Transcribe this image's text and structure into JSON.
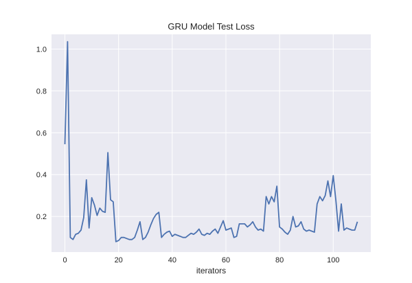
{
  "chart_data": {
    "type": "line",
    "title": "GRU Model Test Loss",
    "xlabel": "iterators",
    "ylabel": "",
    "xlim": [
      -5,
      114
    ],
    "ylim": [
      0.03,
      1.07
    ],
    "xticks": [
      0,
      20,
      40,
      60,
      80,
      100
    ],
    "yticks": [
      0.2,
      0.4,
      0.6,
      0.8,
      1.0
    ],
    "xtick_labels": [
      "0",
      "20",
      "40",
      "60",
      "80",
      "100"
    ],
    "ytick_labels": [
      "0.2",
      "0.4",
      "0.6",
      "0.8",
      "1.0"
    ],
    "grid": true,
    "background": "#eaeaf2",
    "grid_color": "#ffffff",
    "line_color": "#4c72b0",
    "series": [
      {
        "x": [
          0,
          1,
          2,
          3,
          4,
          5,
          6,
          7,
          8,
          9,
          10,
          11,
          12,
          13,
          14,
          15,
          16,
          17,
          18,
          19,
          20,
          21,
          22,
          23,
          24,
          25,
          26,
          27,
          28,
          29,
          30,
          31,
          32,
          33,
          34,
          35,
          36,
          37,
          38,
          39,
          40,
          41,
          42,
          43,
          44,
          45,
          46,
          47,
          48,
          49,
          50,
          51,
          52,
          53,
          54,
          55,
          56,
          57,
          58,
          59,
          60,
          61,
          62,
          63,
          64,
          65,
          66,
          67,
          68,
          69,
          70,
          71,
          72,
          73,
          74,
          75,
          76,
          77,
          78,
          79,
          80,
          81,
          82,
          83,
          84,
          85,
          86,
          87,
          88,
          89,
          90,
          91,
          92,
          93,
          94,
          95,
          96,
          97,
          98,
          99,
          100,
          101,
          102,
          103,
          104,
          105,
          106,
          107,
          108,
          109
        ],
        "y": [
          0.545,
          1.035,
          0.1,
          0.09,
          0.115,
          0.12,
          0.135,
          0.195,
          0.375,
          0.145,
          0.29,
          0.255,
          0.205,
          0.24,
          0.225,
          0.22,
          0.505,
          0.28,
          0.27,
          0.08,
          0.085,
          0.1,
          0.1,
          0.095,
          0.09,
          0.09,
          0.1,
          0.135,
          0.175,
          0.09,
          0.1,
          0.125,
          0.16,
          0.19,
          0.21,
          0.22,
          0.1,
          0.115,
          0.125,
          0.13,
          0.105,
          0.115,
          0.11,
          0.105,
          0.1,
          0.1,
          0.11,
          0.12,
          0.115,
          0.125,
          0.14,
          0.115,
          0.11,
          0.12,
          0.115,
          0.13,
          0.14,
          0.12,
          0.15,
          0.18,
          0.135,
          0.14,
          0.145,
          0.1,
          0.105,
          0.165,
          0.165,
          0.165,
          0.15,
          0.16,
          0.175,
          0.15,
          0.135,
          0.14,
          0.13,
          0.295,
          0.26,
          0.295,
          0.27,
          0.345,
          0.15,
          0.14,
          0.125,
          0.115,
          0.135,
          0.2,
          0.15,
          0.155,
          0.175,
          0.14,
          0.13,
          0.135,
          0.13,
          0.125,
          0.26,
          0.295,
          0.275,
          0.3,
          0.37,
          0.295,
          0.395,
          0.275,
          0.13,
          0.26,
          0.135,
          0.145,
          0.14,
          0.135,
          0.135,
          0.175
        ]
      }
    ]
  }
}
